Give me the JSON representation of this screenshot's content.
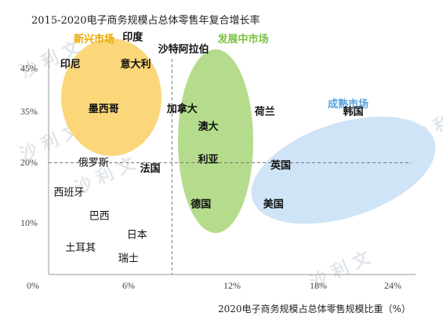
{
  "chart_data": {
    "type": "scatter",
    "title": "2015-2020电子商务规模占总体零售年复合增长率",
    "xlabel": "2020电子商务规模占总体零售规模比重（%）",
    "ylabel": "",
    "x_ticks": [
      "0%",
      "6%",
      "12%",
      "18%",
      "24%"
    ],
    "y_ticks": [
      "10%",
      "20%",
      "35%",
      "45%"
    ],
    "groups": [
      {
        "name": "新兴市场",
        "color": "#F4B400",
        "fill": "#FBD77A"
      },
      {
        "name": "发展中市场",
        "color": "#7CC242",
        "fill": "#B5DC8D"
      },
      {
        "name": "成熟市场",
        "color": "#6EAEE0",
        "fill": "#CFE4F6"
      }
    ],
    "points": [
      {
        "label": "印度",
        "x": 5.8,
        "y": 40.5,
        "group": "新兴市场"
      },
      {
        "label": "印尼",
        "x": 1.5,
        "y": 36.0,
        "group": "新兴市场"
      },
      {
        "label": "意大利",
        "x": 6.0,
        "y": 36.0,
        "group": "新兴市场"
      },
      {
        "label": "墨西哥",
        "x": 3.8,
        "y": 28.5,
        "group": "新兴市场"
      },
      {
        "label": "沙特阿拉伯",
        "x": 9.3,
        "y": 38.5,
        "group": "发展中市场"
      },
      {
        "label": "加拿大",
        "x": 9.2,
        "y": 28.5,
        "group": "发展中市场"
      },
      {
        "label": "澳大",
        "x": 11.0,
        "y": 25.5,
        "group": "发展中市场"
      },
      {
        "label": "利亚",
        "x": 11.0,
        "y": 20.0,
        "group": "发展中市场"
      },
      {
        "label": "法国",
        "x": 7.0,
        "y": 18.5,
        "group": "发展中市场"
      },
      {
        "label": "德国",
        "x": 10.5,
        "y": 12.5,
        "group": "发展中市场"
      },
      {
        "label": "荷兰",
        "x": 14.9,
        "y": 28.0,
        "group": "成熟市场"
      },
      {
        "label": "韩国",
        "x": 21.0,
        "y": 28.0,
        "group": "成熟市场"
      },
      {
        "label": "英国",
        "x": 16.0,
        "y": 19.0,
        "group": "成熟市场"
      },
      {
        "label": "美国",
        "x": 15.5,
        "y": 12.5,
        "group": "成熟市场"
      },
      {
        "label": "俄罗斯",
        "x": 3.1,
        "y": 19.5,
        "group": null
      },
      {
        "label": "西班牙",
        "x": 1.4,
        "y": 14.5,
        "group": null
      },
      {
        "label": "巴西",
        "x": 3.5,
        "y": 10.5,
        "group": null
      },
      {
        "label": "日本",
        "x": 6.1,
        "y": 7.0,
        "group": null
      },
      {
        "label": "土耳其",
        "x": 2.2,
        "y": 4.5,
        "group": null
      },
      {
        "label": "瑞士",
        "x": 5.5,
        "y": 2.5,
        "group": null
      }
    ],
    "reference_lines": {
      "x": 8.5,
      "y": 20
    }
  },
  "watermark": "沙 利 文"
}
